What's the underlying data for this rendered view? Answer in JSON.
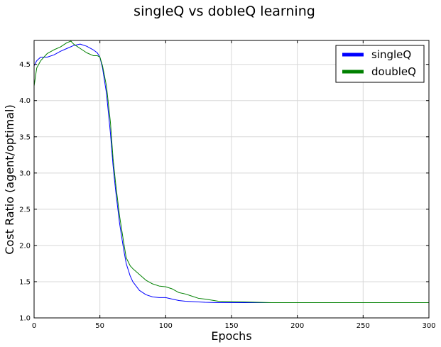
{
  "chart_data": {
    "type": "line",
    "title": "singleQ vs dobleQ learning",
    "xlabel": "Epochs",
    "ylabel": "Cost Ratio (agent/optimal)",
    "xlim": [
      0,
      300
    ],
    "ylim": [
      1.0,
      4.83
    ],
    "xticks": [
      0,
      50,
      100,
      150,
      200,
      250,
      300
    ],
    "yticks": [
      1.0,
      1.5,
      2.0,
      2.5,
      3.0,
      3.5,
      4.0,
      4.5
    ],
    "xtick_labels": [
      "0",
      "50",
      "100",
      "150",
      "200",
      "250",
      "300"
    ],
    "ytick_labels": [
      "1.0",
      "1.5",
      "2.0",
      "2.5",
      "3.0",
      "3.5",
      "4.0",
      "4.5"
    ],
    "grid": true,
    "legend_position": "top-right",
    "series": [
      {
        "name": "singleQ",
        "color": "#0000ff",
        "x": [
          0,
          2,
          5,
          10,
          15,
          20,
          25,
          30,
          35,
          40,
          45,
          48,
          50,
          52,
          55,
          58,
          60,
          62,
          65,
          68,
          70,
          73,
          75,
          80,
          85,
          90,
          95,
          100,
          105,
          110,
          115,
          120,
          125,
          130,
          140,
          150,
          160,
          170,
          180,
          190,
          200,
          250,
          300
        ],
        "y": [
          4.48,
          4.55,
          4.6,
          4.6,
          4.63,
          4.68,
          4.72,
          4.76,
          4.78,
          4.75,
          4.7,
          4.66,
          4.6,
          4.45,
          4.1,
          3.55,
          3.1,
          2.75,
          2.3,
          1.95,
          1.75,
          1.58,
          1.5,
          1.38,
          1.32,
          1.29,
          1.28,
          1.28,
          1.26,
          1.24,
          1.23,
          1.225,
          1.22,
          1.215,
          1.21,
          1.21,
          1.21,
          1.21,
          1.21,
          1.21,
          1.21,
          1.21,
          1.21
        ]
      },
      {
        "name": "doubleQ",
        "color": "#008000",
        "x": [
          0,
          2,
          5,
          10,
          15,
          20,
          25,
          28,
          30,
          35,
          40,
          45,
          48,
          50,
          52,
          55,
          58,
          60,
          62,
          65,
          68,
          70,
          73,
          75,
          80,
          85,
          90,
          95,
          100,
          105,
          110,
          115,
          120,
          125,
          130,
          140,
          150,
          160,
          170,
          180,
          190,
          200,
          250,
          300
        ],
        "y": [
          4.2,
          4.45,
          4.55,
          4.65,
          4.7,
          4.74,
          4.8,
          4.82,
          4.78,
          4.72,
          4.66,
          4.62,
          4.62,
          4.6,
          4.48,
          4.2,
          3.7,
          3.2,
          2.85,
          2.4,
          2.05,
          1.83,
          1.72,
          1.68,
          1.6,
          1.52,
          1.47,
          1.44,
          1.43,
          1.4,
          1.35,
          1.33,
          1.3,
          1.27,
          1.26,
          1.23,
          1.225,
          1.22,
          1.215,
          1.21,
          1.21,
          1.21,
          1.21,
          1.21
        ]
      }
    ]
  }
}
